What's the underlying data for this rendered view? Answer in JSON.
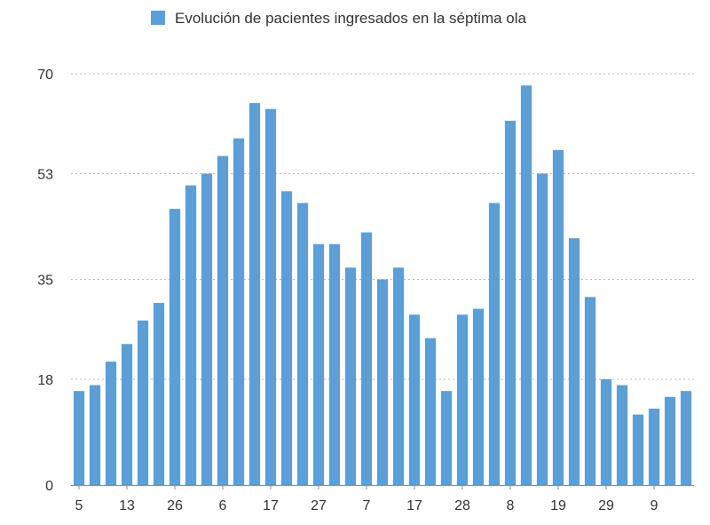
{
  "chart_data": {
    "type": "bar",
    "legend": {
      "position": "top-center",
      "entries": [
        "Evolución de pacientes ingresados en la séptima ola"
      ]
    },
    "series": [
      {
        "name": "Evolución de pacientes ingresados en la séptima ola",
        "color": "#5b9fd6",
        "values": [
          16,
          17,
          21,
          24,
          28,
          31,
          47,
          51,
          53,
          56,
          59,
          65,
          64,
          50,
          48,
          41,
          41,
          37,
          43,
          35,
          37,
          29,
          25,
          16,
          29,
          30,
          48,
          62,
          68,
          53,
          57,
          42,
          32,
          18,
          17,
          12,
          13,
          15,
          16
        ]
      }
    ],
    "categories": [
      "5",
      "",
      "",
      "13",
      "",
      "",
      "26",
      "",
      "",
      "6",
      "",
      "",
      "17",
      "",
      "",
      "27",
      "",
      "",
      "7",
      "",
      "",
      "17",
      "",
      "",
      "28",
      "",
      "",
      "8",
      "",
      "",
      "19",
      "",
      "",
      "29",
      "",
      "",
      "9",
      "",
      ""
    ],
    "y_ticks": [
      "0",
      "18",
      "35",
      "53",
      "70"
    ],
    "ylim": [
      0,
      70
    ],
    "grid": "horizontal-dotted",
    "xlabel": "",
    "ylabel": ""
  }
}
